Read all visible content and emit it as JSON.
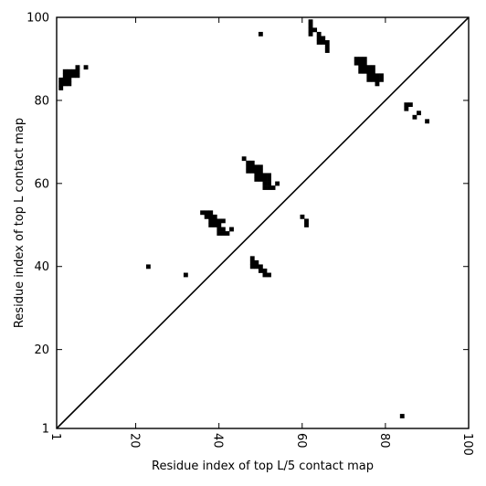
{
  "chart_data": {
    "type": "heatmap",
    "title": "",
    "xlabel": "Residue index of top L/5 contact map",
    "ylabel": "Residue index of top L contact map",
    "xlim": [
      1,
      100
    ],
    "ylim": [
      1,
      100
    ],
    "x_ticks": [
      1,
      20,
      40,
      60,
      80,
      100
    ],
    "y_ticks": [
      1,
      20,
      40,
      60,
      80,
      100
    ],
    "x_tick_labels": [
      "1",
      "20",
      "40",
      "60",
      "80",
      "100"
    ],
    "y_tick_labels": [
      "1",
      "20",
      "40",
      "60",
      "80",
      "100"
    ],
    "x_tick_rotation_deg": -90,
    "grid": false,
    "diagonal_line": true,
    "cell_color": "#000000",
    "background_color": "#ffffff",
    "contacts": [
      [
        2,
        83
      ],
      [
        2,
        84
      ],
      [
        2,
        85
      ],
      [
        3,
        84
      ],
      [
        3,
        85
      ],
      [
        3,
        86
      ],
      [
        3,
        87
      ],
      [
        4,
        84
      ],
      [
        4,
        85
      ],
      [
        4,
        86
      ],
      [
        4,
        87
      ],
      [
        5,
        86
      ],
      [
        5,
        87
      ],
      [
        6,
        86
      ],
      [
        6,
        87
      ],
      [
        6,
        88
      ],
      [
        8,
        88
      ],
      [
        23,
        40
      ],
      [
        32,
        38
      ],
      [
        36,
        53
      ],
      [
        37,
        52
      ],
      [
        37,
        53
      ],
      [
        38,
        50
      ],
      [
        38,
        51
      ],
      [
        38,
        52
      ],
      [
        38,
        53
      ],
      [
        39,
        50
      ],
      [
        39,
        51
      ],
      [
        39,
        52
      ],
      [
        40,
        48
      ],
      [
        40,
        49
      ],
      [
        40,
        50
      ],
      [
        40,
        51
      ],
      [
        41,
        48
      ],
      [
        41,
        49
      ],
      [
        41,
        51
      ],
      [
        42,
        48
      ],
      [
        43,
        49
      ],
      [
        46,
        66
      ],
      [
        47,
        63
      ],
      [
        47,
        64
      ],
      [
        47,
        65
      ],
      [
        48,
        63
      ],
      [
        48,
        64
      ],
      [
        48,
        65
      ],
      [
        49,
        61
      ],
      [
        49,
        62
      ],
      [
        49,
        63
      ],
      [
        49,
        64
      ],
      [
        50,
        61
      ],
      [
        50,
        62
      ],
      [
        50,
        63
      ],
      [
        50,
        64
      ],
      [
        51,
        59
      ],
      [
        51,
        60
      ],
      [
        51,
        61
      ],
      [
        51,
        62
      ],
      [
        52,
        59
      ],
      [
        52,
        60
      ],
      [
        52,
        61
      ],
      [
        52,
        62
      ],
      [
        53,
        59
      ],
      [
        54,
        60
      ],
      [
        48,
        40
      ],
      [
        48,
        41
      ],
      [
        48,
        42
      ],
      [
        49,
        40
      ],
      [
        49,
        41
      ],
      [
        50,
        39
      ],
      [
        50,
        40
      ],
      [
        51,
        38
      ],
      [
        51,
        39
      ],
      [
        52,
        38
      ],
      [
        60,
        52
      ],
      [
        61,
        50
      ],
      [
        61,
        51
      ],
      [
        50,
        96
      ],
      [
        62,
        96
      ],
      [
        62,
        97
      ],
      [
        62,
        98
      ],
      [
        62,
        99
      ],
      [
        63,
        97
      ],
      [
        64,
        94
      ],
      [
        64,
        95
      ],
      [
        64,
        96
      ],
      [
        65,
        94
      ],
      [
        65,
        95
      ],
      [
        66,
        92
      ],
      [
        66,
        93
      ],
      [
        66,
        94
      ],
      [
        73,
        89
      ],
      [
        73,
        90
      ],
      [
        74,
        87
      ],
      [
        74,
        88
      ],
      [
        74,
        89
      ],
      [
        74,
        90
      ],
      [
        75,
        87
      ],
      [
        75,
        88
      ],
      [
        75,
        89
      ],
      [
        75,
        90
      ],
      [
        76,
        85
      ],
      [
        76,
        86
      ],
      [
        76,
        87
      ],
      [
        76,
        88
      ],
      [
        77,
        85
      ],
      [
        77,
        86
      ],
      [
        77,
        87
      ],
      [
        77,
        88
      ],
      [
        78,
        84
      ],
      [
        78,
        85
      ],
      [
        78,
        86
      ],
      [
        79,
        85
      ],
      [
        79,
        86
      ],
      [
        85,
        78
      ],
      [
        85,
        79
      ],
      [
        86,
        79
      ],
      [
        87,
        76
      ],
      [
        88,
        77
      ],
      [
        90,
        75
      ],
      [
        84,
        4
      ]
    ]
  }
}
